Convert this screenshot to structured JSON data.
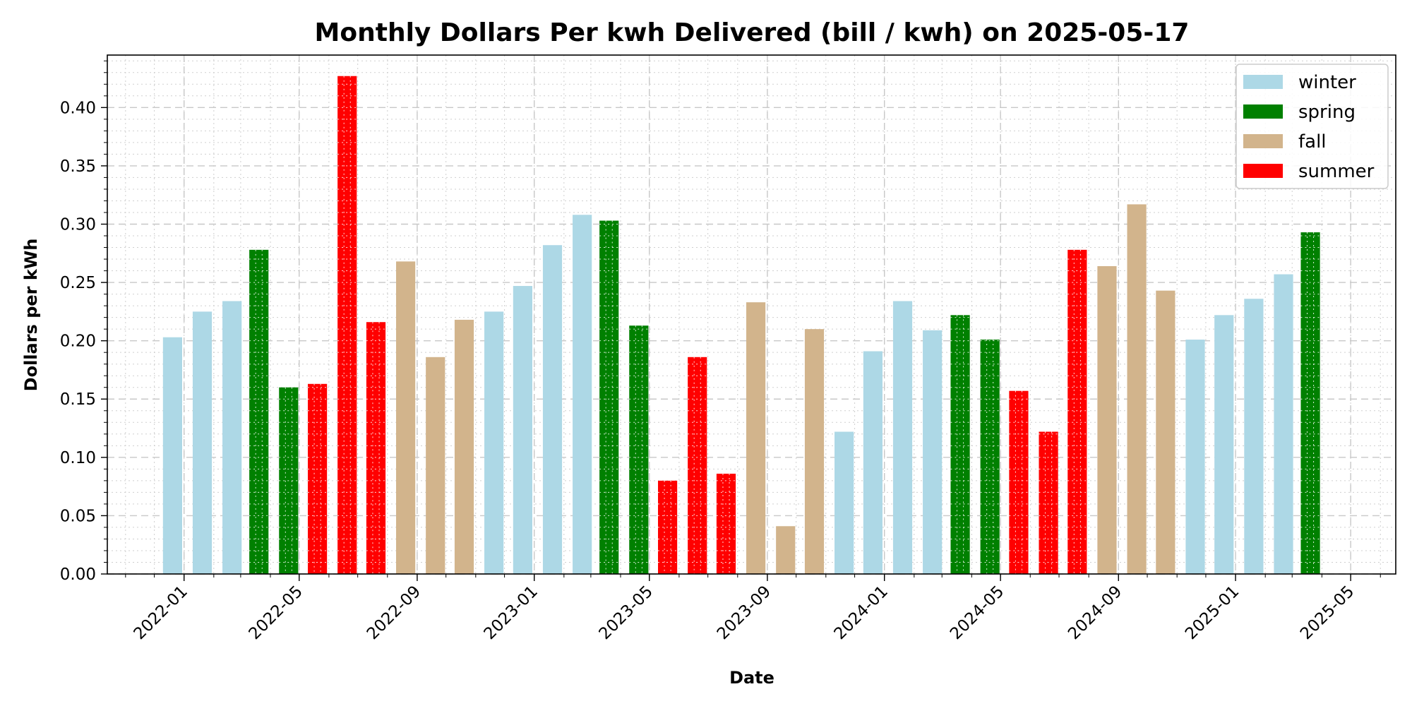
{
  "chart_data": {
    "type": "bar",
    "title": "Monthly Dollars Per kwh Delivered (bill / kwh) on 2025-05-17",
    "xlabel": "Date",
    "ylabel": "Dollars per kWh",
    "ylim": [
      0,
      0.445
    ],
    "y_ticks": [
      "0.00",
      "0.05",
      "0.10",
      "0.15",
      "0.20",
      "0.25",
      "0.30",
      "0.35",
      "0.40"
    ],
    "x_range": [
      "2021-10-13",
      "2025-06-17"
    ],
    "x_ticks": [
      "2022-01",
      "2022-05",
      "2022-09",
      "2023-01",
      "2023-05",
      "2023-09",
      "2024-01",
      "2024-05",
      "2024-09",
      "2025-01",
      "2025-05"
    ],
    "grid": true,
    "legend_position": "top-right",
    "season_colors": {
      "winter": "#add8e6",
      "spring": "#008000",
      "fall": "#d2b48c",
      "summer": "#ff0000"
    },
    "legend": [
      "winter",
      "spring",
      "fall",
      "summer"
    ],
    "bars": [
      {
        "date": "2021-12-20",
        "value": 0.203,
        "season": "winter"
      },
      {
        "date": "2022-01-20",
        "value": 0.225,
        "season": "winter"
      },
      {
        "date": "2022-02-20",
        "value": 0.234,
        "season": "winter"
      },
      {
        "date": "2022-03-20",
        "value": 0.278,
        "season": "spring"
      },
      {
        "date": "2022-04-20",
        "value": 0.16,
        "season": "spring"
      },
      {
        "date": "2022-05-20",
        "value": 0.163,
        "season": "summer"
      },
      {
        "date": "2022-06-20",
        "value": 0.427,
        "season": "summer"
      },
      {
        "date": "2022-07-20",
        "value": 0.216,
        "season": "summer"
      },
      {
        "date": "2022-08-20",
        "value": 0.268,
        "season": "fall"
      },
      {
        "date": "2022-09-20",
        "value": 0.186,
        "season": "fall"
      },
      {
        "date": "2022-10-20",
        "value": 0.218,
        "season": "fall"
      },
      {
        "date": "2022-11-20",
        "value": 0.225,
        "season": "winter"
      },
      {
        "date": "2022-12-20",
        "value": 0.247,
        "season": "winter"
      },
      {
        "date": "2023-01-20",
        "value": 0.282,
        "season": "winter"
      },
      {
        "date": "2023-02-20",
        "value": 0.308,
        "season": "winter"
      },
      {
        "date": "2023-03-20",
        "value": 0.303,
        "season": "spring"
      },
      {
        "date": "2023-04-20",
        "value": 0.213,
        "season": "spring"
      },
      {
        "date": "2023-05-20",
        "value": 0.08,
        "season": "summer"
      },
      {
        "date": "2023-06-20",
        "value": 0.186,
        "season": "summer"
      },
      {
        "date": "2023-07-20",
        "value": 0.086,
        "season": "summer"
      },
      {
        "date": "2023-08-20",
        "value": 0.233,
        "season": "fall"
      },
      {
        "date": "2023-09-20",
        "value": 0.041,
        "season": "fall"
      },
      {
        "date": "2023-10-20",
        "value": 0.21,
        "season": "fall"
      },
      {
        "date": "2023-11-20",
        "value": 0.122,
        "season": "winter"
      },
      {
        "date": "2023-12-20",
        "value": 0.191,
        "season": "winter"
      },
      {
        "date": "2024-01-20",
        "value": 0.234,
        "season": "winter"
      },
      {
        "date": "2024-02-20",
        "value": 0.209,
        "season": "winter"
      },
      {
        "date": "2024-03-20",
        "value": 0.222,
        "season": "spring"
      },
      {
        "date": "2024-04-20",
        "value": 0.201,
        "season": "spring"
      },
      {
        "date": "2024-05-20",
        "value": 0.157,
        "season": "summer"
      },
      {
        "date": "2024-06-20",
        "value": 0.122,
        "season": "summer"
      },
      {
        "date": "2024-07-20",
        "value": 0.278,
        "season": "summer"
      },
      {
        "date": "2024-08-20",
        "value": 0.264,
        "season": "fall"
      },
      {
        "date": "2024-09-20",
        "value": 0.317,
        "season": "fall"
      },
      {
        "date": "2024-10-20",
        "value": 0.243,
        "season": "fall"
      },
      {
        "date": "2024-11-20",
        "value": 0.201,
        "season": "winter"
      },
      {
        "date": "2024-12-20",
        "value": 0.222,
        "season": "winter"
      },
      {
        "date": "2025-01-20",
        "value": 0.236,
        "season": "winter"
      },
      {
        "date": "2025-02-20",
        "value": 0.257,
        "season": "winter"
      },
      {
        "date": "2025-03-20",
        "value": 0.293,
        "season": "spring"
      }
    ]
  }
}
